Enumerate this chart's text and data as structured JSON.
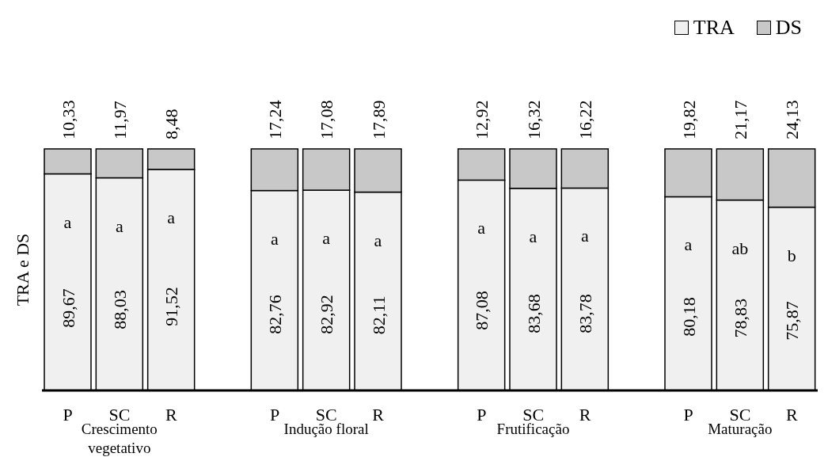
{
  "chart_data": {
    "type": "bar",
    "stacked": true,
    "ylabel": "TRA e DS",
    "ylim": [
      0,
      100
    ],
    "categories": [
      "P",
      "SC",
      "R",
      null,
      "P",
      "SC",
      "R",
      null,
      "P",
      "SC",
      "R",
      null,
      "P",
      "SC",
      "R"
    ],
    "series": [
      {
        "name": "TRA",
        "color": "#f0f0f0",
        "values": [
          89.67,
          88.03,
          91.52,
          null,
          82.76,
          82.92,
          82.11,
          null,
          87.08,
          83.68,
          83.78,
          null,
          80.18,
          78.83,
          75.87
        ],
        "value_labels": [
          "89,67",
          "88,03",
          "91,52",
          null,
          "82,76",
          "82,92",
          "82,11",
          null,
          "87,08",
          "83,68",
          "83,78",
          null,
          "80,18",
          "78,83",
          "75,87"
        ]
      },
      {
        "name": "DS",
        "color": "#c8c8c8",
        "values": [
          10.33,
          11.97,
          8.48,
          null,
          17.24,
          17.08,
          17.89,
          null,
          12.92,
          16.32,
          16.22,
          null,
          19.82,
          21.17,
          24.13
        ],
        "value_labels": [
          "10,33",
          "11,97",
          "8,48",
          null,
          "17,24",
          "17,08",
          "17,89",
          null,
          "12,92",
          "16,32",
          "16,22",
          null,
          "19,82",
          "21,17",
          "24,13"
        ]
      }
    ],
    "annotations": [
      "Crescimento vegetativo",
      "Indução floral",
      "Frutificação",
      "Maturação",
      "a",
      "a",
      "a",
      "a",
      "a",
      "a",
      "a",
      "a",
      "a",
      "a",
      "ab",
      "b"
    ],
    "legend": "top right",
    "grid": false
  }
}
